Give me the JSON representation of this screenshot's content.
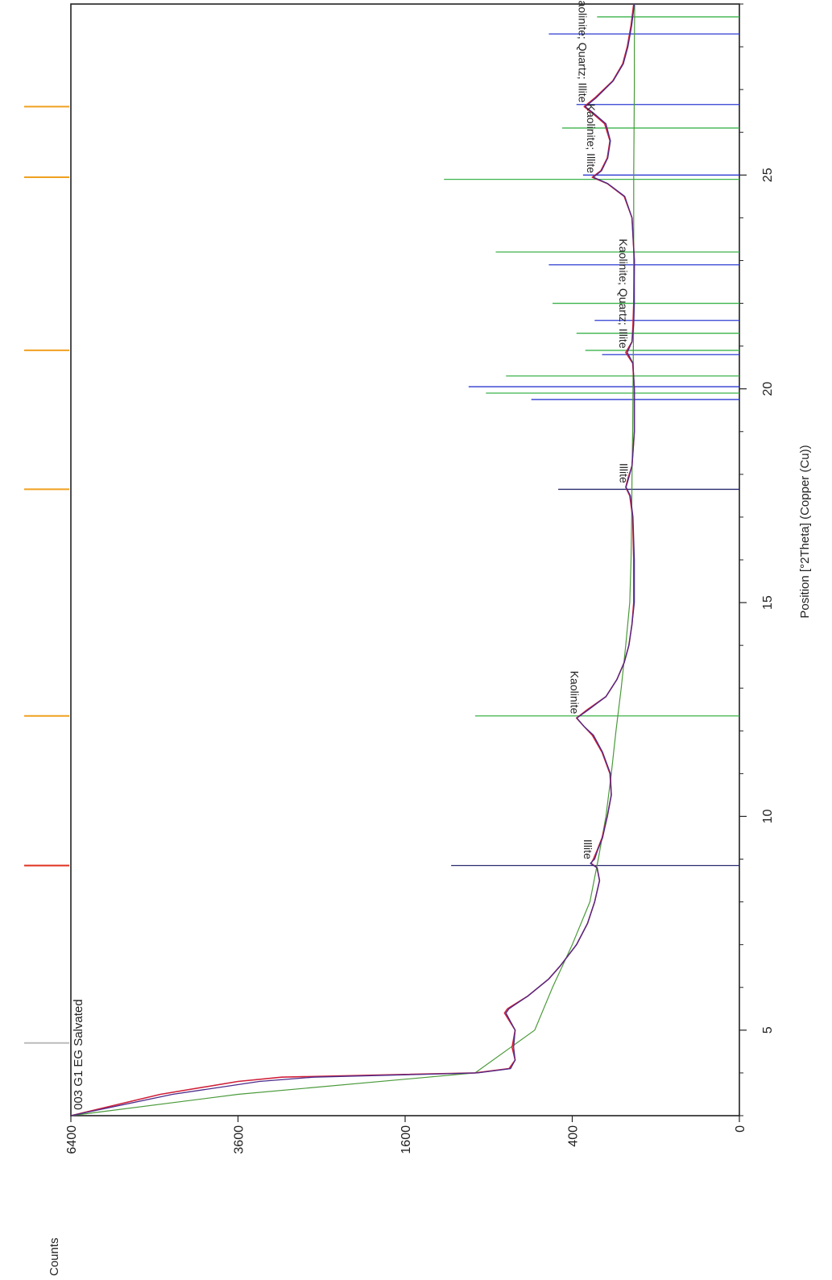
{
  "chart_data": {
    "type": "line",
    "orientation": "rotated-90-clockwise",
    "sample_label": "003 G1 EG Salvated",
    "xlabel": "Position [°2Theta] (Copper (Cu))",
    "ylabel": "Counts",
    "x_range": [
      3,
      29
    ],
    "x_ticks": [
      5,
      10,
      15,
      20,
      25
    ],
    "y_scale": "sqrt",
    "y_range": [
      0,
      6400
    ],
    "y_ticks": [
      0,
      400,
      1600,
      3600,
      6400
    ],
    "colors": {
      "observed": "#d0203a",
      "calculated": "#4a2a8a",
      "background": "#4a9a3a",
      "kaolinite": "#3bb34a",
      "quartz": "#2b3bd0",
      "illite": "#2a2a70",
      "marker_orange": "#f0a020",
      "marker_red": "#e03020"
    },
    "observed": {
      "x": [
        3.0,
        3.5,
        3.8,
        3.9,
        4.0,
        4.1,
        4.3,
        4.6,
        5.0,
        5.4,
        5.5,
        5.8,
        6.2,
        6.5,
        7.0,
        7.5,
        8.0,
        8.5,
        8.8,
        8.9,
        9.0,
        9.2,
        9.5,
        10.0,
        10.5,
        11.0,
        11.5,
        11.9,
        12.1,
        12.3,
        12.5,
        12.8,
        13.2,
        13.6,
        14.0,
        14.5,
        15.0,
        16.0,
        17.0,
        17.5,
        17.7,
        17.9,
        18.2,
        19.0,
        20.0,
        20.6,
        20.85,
        21.1,
        21.5,
        22.0,
        23.0,
        24.0,
        24.5,
        24.8,
        24.95,
        25.1,
        25.4,
        25.8,
        26.2,
        26.45,
        26.6,
        26.8,
        27.2,
        27.6,
        28.0,
        28.5,
        29.0
      ],
      "y": [
        6400,
        4800,
        3600,
        3000,
        1000,
        760,
        720,
        740,
        720,
        790,
        770,
        640,
        520,
        460,
        380,
        330,
        300,
        280,
        290,
        315,
        305,
        290,
        270,
        250,
        235,
        240,
        270,
        310,
        345,
        380,
        330,
        255,
        215,
        190,
        175,
        165,
        160,
        160,
        163,
        172,
        185,
        178,
        165,
        158,
        158,
        163,
        185,
        165,
        162,
        160,
        158,
        165,
        190,
        250,
        310,
        275,
        250,
        240,
        260,
        310,
        345,
        300,
        230,
        195,
        180,
        168,
        160
      ]
    },
    "calculated": {
      "x": [
        3.0,
        3.5,
        3.8,
        3.9,
        4.0,
        4.1,
        4.3,
        4.6,
        5.0,
        5.4,
        5.5,
        5.8,
        6.2,
        6.5,
        7.0,
        7.5,
        8.0,
        8.5,
        8.8,
        8.9,
        9.0,
        9.2,
        9.5,
        10.0,
        10.5,
        11.0,
        11.5,
        11.9,
        12.1,
        12.3,
        12.5,
        12.8,
        13.2,
        13.6,
        14.0,
        14.5,
        15.0,
        16.0,
        17.0,
        17.5,
        17.7,
        17.9,
        18.2,
        19.0,
        20.0,
        20.6,
        20.85,
        21.1,
        21.5,
        22.0,
        23.0,
        24.0,
        24.5,
        24.8,
        24.95,
        25.1,
        25.4,
        25.8,
        26.2,
        26.45,
        26.6,
        26.8,
        27.2,
        27.6,
        28.0,
        28.5,
        29.0
      ],
      "y": [
        6400,
        4600,
        3300,
        2600,
        980,
        750,
        720,
        730,
        720,
        780,
        760,
        640,
        520,
        460,
        380,
        330,
        300,
        280,
        290,
        318,
        300,
        288,
        268,
        250,
        235,
        238,
        268,
        305,
        345,
        378,
        325,
        255,
        215,
        190,
        175,
        165,
        158,
        158,
        162,
        170,
        184,
        176,
        165,
        158,
        158,
        162,
        180,
        165,
        160,
        158,
        158,
        165,
        188,
        248,
        305,
        272,
        248,
        238,
        255,
        305,
        340,
        295,
        228,
        193,
        178,
        166,
        158
      ]
    },
    "background": {
      "x": [
        3.0,
        3.5,
        4.0,
        5.0,
        6.0,
        7.0,
        8.0,
        9.0,
        10.0,
        11.0,
        12.0,
        13.0,
        14.0,
        15.0,
        16.0,
        17.0,
        18.0,
        19.0,
        20.0,
        21.0,
        22.0,
        23.0,
        24.0,
        25.0,
        26.0,
        27.0,
        28.0,
        29.0
      ],
      "y": [
        6400,
        3600,
        1000,
        600,
        500,
        400,
        320,
        285,
        255,
        235,
        218,
        200,
        185,
        172,
        168,
        166,
        165,
        163,
        162,
        161,
        160,
        160,
        160,
        160,
        159,
        158,
        158,
        157
      ]
    },
    "peak_labels": [
      {
        "x": 8.9,
        "y": 318,
        "text": "Illite"
      },
      {
        "x": 12.3,
        "y": 378,
        "text": "Kaolinite"
      },
      {
        "x": 17.7,
        "y": 184,
        "text": "Illite"
      },
      {
        "x": 20.85,
        "y": 185,
        "text": "Kaolinite; Quartz; Illite"
      },
      {
        "x": 24.95,
        "y": 305,
        "text": "Kaolinite; Illite"
      },
      {
        "x": 26.6,
        "y": 340,
        "text": "Kaolinite; Quartz; Illite"
      }
    ],
    "reference_sticks": {
      "kaolinite": [
        {
          "x": 12.35,
          "y": 1000
        },
        {
          "x": 19.9,
          "y": 920
        },
        {
          "x": 20.3,
          "y": 780
        },
        {
          "x": 20.9,
          "y": 340
        },
        {
          "x": 21.3,
          "y": 380
        },
        {
          "x": 22.0,
          "y": 500
        },
        {
          "x": 23.2,
          "y": 850
        },
        {
          "x": 24.9,
          "y": 1250
        },
        {
          "x": 26.1,
          "y": 450
        },
        {
          "x": 28.7,
          "y": 290
        }
      ],
      "quartz": [
        {
          "x": 19.75,
          "y": 620
        },
        {
          "x": 20.05,
          "y": 1050
        },
        {
          "x": 20.8,
          "y": 270
        },
        {
          "x": 21.6,
          "y": 300
        },
        {
          "x": 22.9,
          "y": 520
        },
        {
          "x": 25.0,
          "y": 350
        },
        {
          "x": 26.65,
          "y": 380
        },
        {
          "x": 28.3,
          "y": 520
        }
      ],
      "illite": [
        {
          "x": 8.85,
          "y": 1190
        },
        {
          "x": 17.65,
          "y": 470
        }
      ]
    },
    "top_markers": [
      {
        "x": 4.7,
        "color": "#bbbbbb"
      },
      {
        "x": 8.85,
        "color": "#e03020"
      },
      {
        "x": 12.35,
        "color": "#f0a020"
      },
      {
        "x": 17.65,
        "color": "#f0a020"
      },
      {
        "x": 20.9,
        "color": "#f0a020"
      },
      {
        "x": 24.95,
        "color": "#f0a020"
      },
      {
        "x": 26.6,
        "color": "#f0a020"
      }
    ]
  }
}
